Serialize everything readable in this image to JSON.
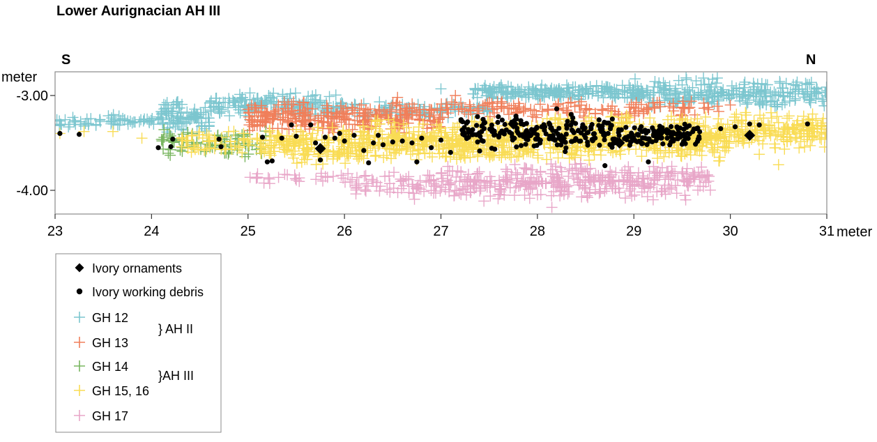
{
  "chart_data": {
    "type": "scatter",
    "title": "Lower Aurignacian AH III",
    "xlabel": "meter",
    "ylabel": "meter",
    "direction_left": "S",
    "direction_right": "N",
    "xlim": [
      23,
      31
    ],
    "ylim": [
      -4.25,
      -2.75
    ],
    "xticks": [
      23,
      24,
      25,
      26,
      27,
      28,
      29,
      30,
      31
    ],
    "xtick_labels": [
      "23",
      "24",
      "25",
      "26",
      "27",
      "28",
      "29",
      "30",
      "31"
    ],
    "yticks": [
      -3.0,
      -4.0
    ],
    "ytick_labels": [
      "-3.00",
      "-4.00"
    ],
    "grid": false,
    "legend_position": "bottom-left",
    "legend": [
      {
        "key": "ornaments",
        "label": "Ivory ornaments",
        "marker": "diamond",
        "color": "#000000"
      },
      {
        "key": "debris",
        "label": "Ivory working debris",
        "marker": "dot",
        "color": "#000000"
      },
      {
        "key": "gh12",
        "label": "GH 12",
        "marker": "plus",
        "color": "#7cc6cf"
      },
      {
        "key": "gh13",
        "label": "GH 13",
        "marker": "plus",
        "color": "#f07f5a"
      },
      {
        "key": "gh14",
        "label": "GH 14",
        "marker": "plus",
        "color": "#78b55f"
      },
      {
        "key": "gh15",
        "label": "GH 15, 16",
        "marker": "plus",
        "color": "#f9dc54"
      },
      {
        "key": "gh17",
        "label": "GH 17",
        "marker": "plus",
        "color": "#e8a6c8"
      }
    ],
    "brackets": [
      {
        "label": "} AH II",
        "groups": [
          "GH 12",
          "GH 13"
        ]
      },
      {
        "label": "}AH III",
        "groups": [
          "GH 14",
          "GH 15, 16"
        ]
      }
    ],
    "series": [
      {
        "name": "GH 12",
        "marker": "plus",
        "color": "#7cc6cf",
        "regions": [
          {
            "x": [
              23.0,
              24.1
            ],
            "y": [
              -3.35,
              -3.2
            ],
            "count": 60
          },
          {
            "x": [
              24.1,
              24.6
            ],
            "y": [
              -3.4,
              -3.05
            ],
            "count": 90
          },
          {
            "x": [
              24.6,
              26.0
            ],
            "y": [
              -3.25,
              -2.95
            ],
            "count": 160
          },
          {
            "x": [
              26.0,
              27.5
            ],
            "y": [
              -3.25,
              -3.05
            ],
            "count": 80
          },
          {
            "x": [
              27.3,
              29.0
            ],
            "y": [
              -3.05,
              -2.88
            ],
            "count": 200
          },
          {
            "x": [
              29.0,
              31.0
            ],
            "y": [
              -3.15,
              -2.8
            ],
            "count": 260
          }
        ],
        "points": [
          {
            "x": 27.0,
            "y": -2.93
          }
        ]
      },
      {
        "name": "GH 13",
        "marker": "plus",
        "color": "#f07f5a",
        "regions": [
          {
            "x": [
              25.0,
              27.0
            ],
            "y": [
              -3.4,
              -3.05
            ],
            "count": 280
          },
          {
            "x": [
              27.0,
              29.9
            ],
            "y": [
              -3.25,
              -3.05
            ],
            "count": 140
          }
        ],
        "points": [
          {
            "x": 26.55,
            "y": -3.02
          },
          {
            "x": 27.15,
            "y": -3.0
          },
          {
            "x": 26.9,
            "y": -3.15
          },
          {
            "x": 30.0,
            "y": -3.1
          }
        ]
      },
      {
        "name": "GH 14",
        "marker": "plus",
        "color": "#78b55f",
        "regions": [
          {
            "x": [
              24.1,
              25.2
            ],
            "y": [
              -3.65,
              -3.35
            ],
            "count": 80
          }
        ],
        "points": []
      },
      {
        "name": "GH 15, 16",
        "marker": "plus",
        "color": "#f9dc54",
        "regions": [
          {
            "x": [
              24.3,
              25.5
            ],
            "y": [
              -3.65,
              -3.35
            ],
            "count": 80
          },
          {
            "x": [
              25.2,
              26.2
            ],
            "y": [
              -3.75,
              -3.3
            ],
            "count": 160
          },
          {
            "x": [
              26.2,
              28.0
            ],
            "y": [
              -3.7,
              -3.25
            ],
            "count": 380
          },
          {
            "x": [
              28.0,
              30.0
            ],
            "y": [
              -3.7,
              -3.2
            ],
            "count": 420
          },
          {
            "x": [
              30.0,
              31.0
            ],
            "y": [
              -3.6,
              -3.15
            ],
            "count": 160
          }
        ],
        "points": [
          {
            "x": 23.05,
            "y": -3.4
          },
          {
            "x": 23.3,
            "y": -3.38
          },
          {
            "x": 23.6,
            "y": -3.38
          },
          {
            "x": 23.9,
            "y": -3.45
          },
          {
            "x": 30.5,
            "y": -3.73
          },
          {
            "x": 30.3,
            "y": -3.62
          }
        ]
      },
      {
        "name": "GH 17",
        "marker": "plus",
        "color": "#e8a6c8",
        "regions": [
          {
            "x": [
              25.0,
              26.2
            ],
            "y": [
              -3.95,
              -3.8
            ],
            "count": 30
          },
          {
            "x": [
              26.1,
              27.0
            ],
            "y": [
              -4.1,
              -3.8
            ],
            "count": 60
          },
          {
            "x": [
              27.0,
              29.8
            ],
            "y": [
              -4.12,
              -3.7
            ],
            "count": 360
          }
        ],
        "points": [
          {
            "x": 28.15,
            "y": -4.18
          },
          {
            "x": 29.2,
            "y": -4.1
          }
        ]
      },
      {
        "name": "Ivory working debris",
        "marker": "dot",
        "color": "#000000",
        "regions": [
          {
            "x": [
              27.2,
              28.9
            ],
            "y": [
              -3.6,
              -3.2
            ],
            "count": 200
          },
          {
            "x": [
              28.9,
              29.7
            ],
            "y": [
              -3.55,
              -3.3
            ],
            "count": 110
          }
        ],
        "points": [
          {
            "x": 23.05,
            "y": -3.4
          },
          {
            "x": 23.25,
            "y": -3.41
          },
          {
            "x": 24.07,
            "y": -3.55
          },
          {
            "x": 24.22,
            "y": -3.46
          },
          {
            "x": 24.2,
            "y": -3.54
          },
          {
            "x": 24.7,
            "y": -3.46
          },
          {
            "x": 24.72,
            "y": -3.54
          },
          {
            "x": 25.15,
            "y": -3.44
          },
          {
            "x": 25.2,
            "y": -3.7
          },
          {
            "x": 25.25,
            "y": -3.69
          },
          {
            "x": 25.35,
            "y": -3.45
          },
          {
            "x": 25.45,
            "y": -3.31
          },
          {
            "x": 25.5,
            "y": -3.43
          },
          {
            "x": 25.65,
            "y": -3.31
          },
          {
            "x": 25.7,
            "y": -3.5
          },
          {
            "x": 25.75,
            "y": -3.68
          },
          {
            "x": 25.8,
            "y": -3.44
          },
          {
            "x": 25.9,
            "y": -3.45
          },
          {
            "x": 25.95,
            "y": -3.4
          },
          {
            "x": 26.0,
            "y": -3.48
          },
          {
            "x": 26.1,
            "y": -3.42
          },
          {
            "x": 26.2,
            "y": -3.58
          },
          {
            "x": 26.25,
            "y": -3.71
          },
          {
            "x": 26.3,
            "y": -3.5
          },
          {
            "x": 26.35,
            "y": -3.42
          },
          {
            "x": 26.4,
            "y": -3.52
          },
          {
            "x": 26.5,
            "y": -3.49
          },
          {
            "x": 26.6,
            "y": -3.48
          },
          {
            "x": 26.7,
            "y": -3.5
          },
          {
            "x": 26.75,
            "y": -3.7
          },
          {
            "x": 26.8,
            "y": -3.45
          },
          {
            "x": 26.9,
            "y": -3.55
          },
          {
            "x": 27.0,
            "y": -3.47
          },
          {
            "x": 27.1,
            "y": -3.6
          },
          {
            "x": 28.2,
            "y": -3.14
          },
          {
            "x": 28.35,
            "y": -3.2
          },
          {
            "x": 28.7,
            "y": -3.74
          },
          {
            "x": 29.15,
            "y": -3.7
          },
          {
            "x": 29.9,
            "y": -3.35
          },
          {
            "x": 30.05,
            "y": -3.33
          },
          {
            "x": 30.2,
            "y": -3.3
          },
          {
            "x": 30.3,
            "y": -3.31
          },
          {
            "x": 30.8,
            "y": -3.3
          }
        ]
      },
      {
        "name": "Ivory ornaments",
        "marker": "diamond",
        "color": "#000000",
        "regions": [],
        "points": [
          {
            "x": 25.75,
            "y": -3.56
          },
          {
            "x": 27.75,
            "y": -3.3
          },
          {
            "x": 28.25,
            "y": -3.45
          },
          {
            "x": 28.85,
            "y": -3.5
          },
          {
            "x": 29.25,
            "y": -3.4
          },
          {
            "x": 30.2,
            "y": -3.42
          }
        ]
      }
    ]
  }
}
